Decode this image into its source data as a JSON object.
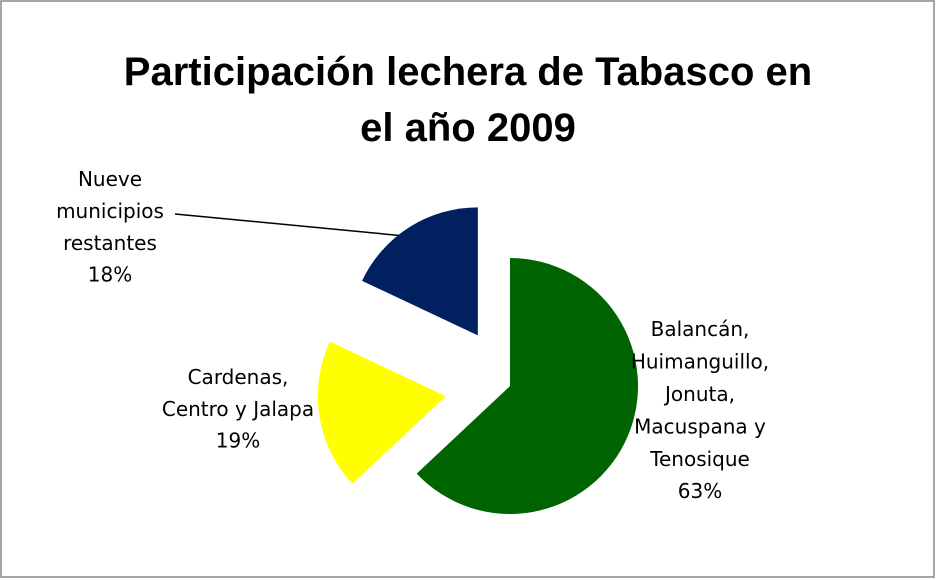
{
  "chart_data": {
    "type": "pie",
    "title": "Participación lechera de Tabasco en\nel año 2009",
    "categories": [
      "Balancán,\nHuimanguillo,\nJonuta,\nMacuspana y\nTenosique",
      "Cardenas,\nCentro y Jalapa",
      "Nueve\nmunicipios\nrestantes"
    ],
    "values": [
      63,
      19,
      18
    ],
    "value_labels": [
      "63%",
      "19%",
      "18%"
    ],
    "colors": [
      "#006400",
      "#ffff00",
      "#002060"
    ]
  }
}
